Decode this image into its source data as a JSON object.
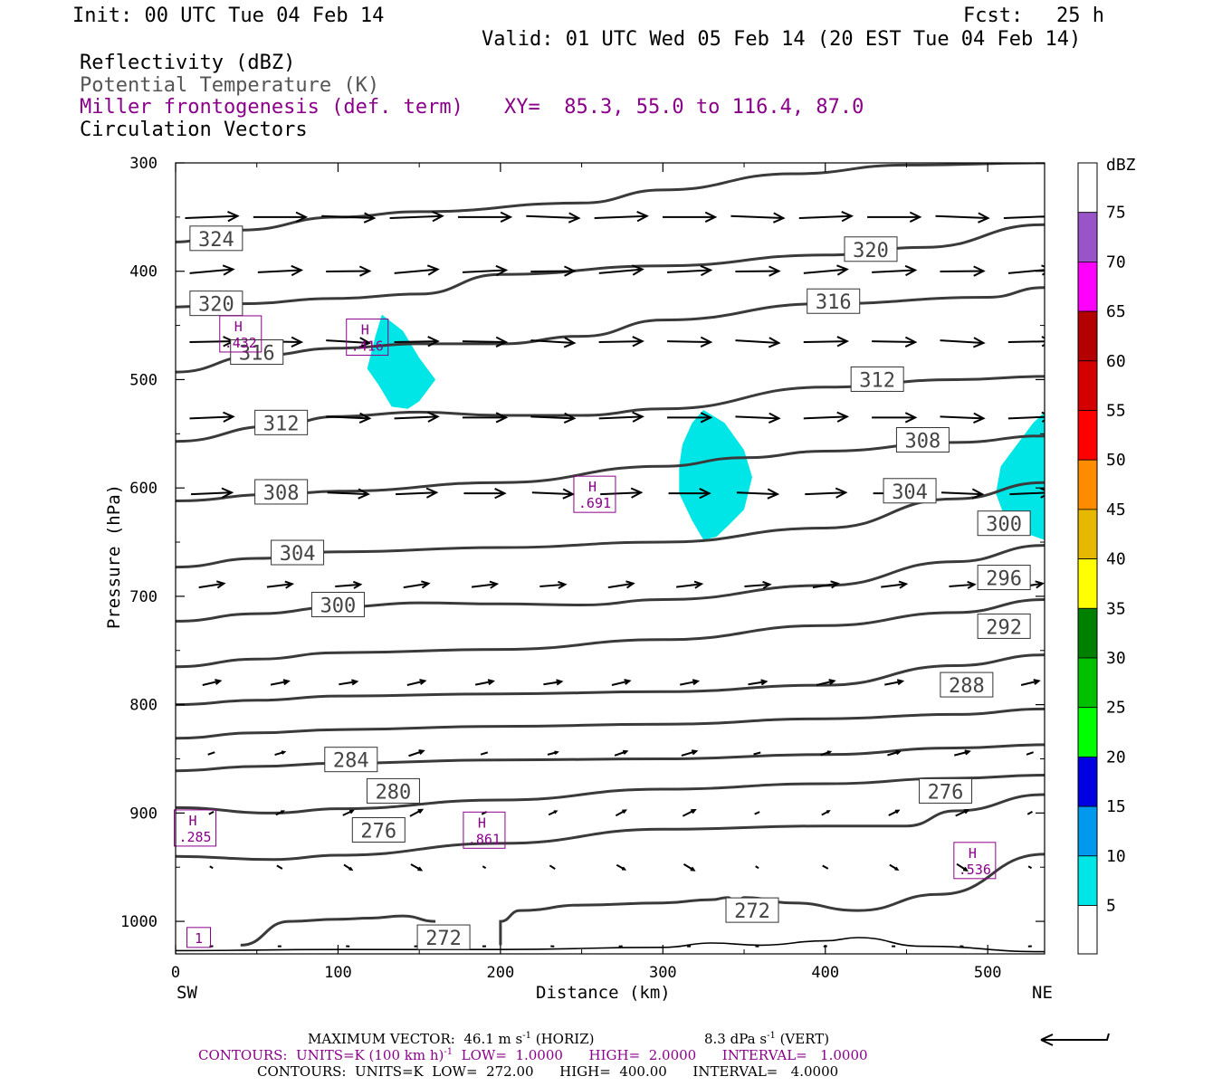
{
  "header": {
    "init": "Init: 00 UTC Tue 04 Feb 14",
    "fcst_label": "Fcst:",
    "fcst_value": "25 h",
    "valid": "Valid: 01 UTC Wed 05 Feb 14 (20 EST Tue 04 Feb 14)"
  },
  "fields": {
    "reflectivity": "Reflectivity (dBZ)",
    "theta": "Potential Temperature (K)",
    "miller": "Miller frontogenesis (def. term)",
    "xy": "XY=  85.3, 55.0 to 116.4, 87.0",
    "circulation": "Circulation Vectors"
  },
  "axes": {
    "ylabel": "Pressure (hPa)",
    "xlabel": "Distance (km)",
    "left_end": "SW",
    "right_end": "NE",
    "yticks": [
      "300",
      "400",
      "500",
      "600",
      "700",
      "800",
      "900",
      "1000"
    ],
    "xticks": [
      "0",
      "100",
      "200",
      "300",
      "400",
      "500"
    ]
  },
  "colorbar": {
    "title": "dBZ",
    "labels": [
      "75",
      "70",
      "65",
      "60",
      "55",
      "50",
      "45",
      "40",
      "35",
      "30",
      "25",
      "20",
      "15",
      "10",
      "5"
    ],
    "colors": [
      "#ffffff",
      "#9955c8",
      "#ff00ff",
      "#b30000",
      "#d40000",
      "#ff0000",
      "#ff8c00",
      "#e6b800",
      "#ffff00",
      "#008000",
      "#00c000",
      "#00ff00",
      "#0000e0",
      "#0099ee",
      "#00e6e6",
      "#ffffff"
    ]
  },
  "footer": {
    "vector_prefix": "MAXIMUM VECTOR:  46.1 m s",
    "vector_horiz_exp": "-1",
    "vector_horiz_suffix": " (HORIZ)",
    "vector_vert": "8.3 dPa s",
    "vector_vert_exp": "-1",
    "vector_vert_suffix": " (VERT)",
    "contours_purple_a": "CONTOURS:  UNITS=K (100 km h)",
    "contours_purple_exp": "-1",
    "contours_purple_b": "  LOW=  1.0000      HIGH=  2.0000      INTERVAL=   1.0000",
    "contours_black": "CONTOURS:  UNITS=K  LOW=  272.00      HIGH=  400.00      INTERVAL=   4.0000"
  },
  "chart_data": {
    "type": "cross-section",
    "x_range_km": [
      0,
      535
    ],
    "y_range_hpa": [
      300,
      1030
    ],
    "theta_contours_K": [
      {
        "label": "324",
        "pts": [
          [
            0,
            373
          ],
          [
            40,
            362
          ],
          [
            100,
            350
          ],
          [
            150,
            345
          ],
          [
            250,
            337
          ],
          [
            300,
            325
          ],
          [
            380,
            310
          ],
          [
            450,
            302
          ],
          [
            535,
            300
          ]
        ]
      },
      {
        "label": "320",
        "pts": [
          [
            0,
            433
          ],
          [
            40,
            430
          ],
          [
            100,
            425
          ],
          [
            150,
            421
          ],
          [
            200,
            403
          ],
          [
            300,
            395
          ],
          [
            400,
            385
          ],
          [
            460,
            378
          ],
          [
            535,
            357
          ]
        ]
      },
      {
        "label": "316",
        "pts": [
          [
            0,
            493
          ],
          [
            50,
            478
          ],
          [
            100,
            471
          ],
          [
            150,
            467
          ],
          [
            200,
            467
          ],
          [
            250,
            460
          ],
          [
            300,
            445
          ],
          [
            400,
            430
          ],
          [
            500,
            424
          ],
          [
            535,
            415
          ]
        ]
      },
      {
        "label": "312",
        "pts": [
          [
            0,
            557
          ],
          [
            60,
            543
          ],
          [
            100,
            534
          ],
          [
            150,
            530
          ],
          [
            200,
            533
          ],
          [
            250,
            533
          ],
          [
            300,
            527
          ],
          [
            400,
            507
          ],
          [
            480,
            500
          ],
          [
            535,
            497
          ]
        ]
      },
      {
        "label": "308",
        "pts": [
          [
            0,
            612
          ],
          [
            60,
            606
          ],
          [
            100,
            603
          ],
          [
            200,
            595
          ],
          [
            300,
            580
          ],
          [
            350,
            572
          ],
          [
            400,
            566
          ],
          [
            480,
            558
          ],
          [
            535,
            552
          ]
        ]
      },
      {
        "label": "304",
        "pts": [
          [
            0,
            673
          ],
          [
            50,
            665
          ],
          [
            100,
            659
          ],
          [
            200,
            655
          ],
          [
            300,
            650
          ],
          [
            400,
            637
          ],
          [
            480,
            610
          ],
          [
            535,
            595
          ]
        ]
      },
      {
        "label": "300",
        "pts": [
          [
            0,
            723
          ],
          [
            50,
            716
          ],
          [
            100,
            710
          ],
          [
            150,
            706
          ],
          [
            200,
            707
          ],
          [
            250,
            708
          ],
          [
            300,
            703
          ],
          [
            400,
            690
          ],
          [
            480,
            668
          ],
          [
            535,
            653
          ]
        ]
      },
      {
        "label": "296",
        "pts": [
          [
            0,
            765
          ],
          [
            50,
            758
          ],
          [
            100,
            752
          ],
          [
            200,
            749
          ],
          [
            300,
            740
          ],
          [
            400,
            727
          ],
          [
            480,
            715
          ],
          [
            535,
            703
          ]
        ]
      },
      {
        "label": "292",
        "pts": [
          [
            0,
            800
          ],
          [
            50,
            796
          ],
          [
            100,
            792
          ],
          [
            200,
            790
          ],
          [
            300,
            788
          ],
          [
            400,
            782
          ],
          [
            480,
            764
          ],
          [
            535,
            754
          ]
        ]
      },
      {
        "label": "288",
        "pts": [
          [
            0,
            831
          ],
          [
            50,
            826
          ],
          [
            100,
            823
          ],
          [
            200,
            820
          ],
          [
            300,
            818
          ],
          [
            400,
            813
          ],
          [
            480,
            809
          ],
          [
            535,
            804
          ]
        ]
      },
      {
        "label": "284",
        "pts": [
          [
            0,
            861
          ],
          [
            50,
            857
          ],
          [
            100,
            854
          ],
          [
            200,
            851
          ],
          [
            300,
            850
          ],
          [
            400,
            846
          ],
          [
            480,
            840
          ],
          [
            535,
            837
          ]
        ]
      },
      {
        "label": "280",
        "pts": [
          [
            0,
            895
          ],
          [
            60,
            900
          ],
          [
            100,
            896
          ],
          [
            200,
            888
          ],
          [
            300,
            878
          ],
          [
            400,
            873
          ],
          [
            480,
            868
          ],
          [
            535,
            865
          ]
        ]
      },
      {
        "label": "276",
        "pts": [
          [
            0,
            940
          ],
          [
            60,
            943
          ],
          [
            100,
            939
          ],
          [
            200,
            928
          ],
          [
            300,
            915
          ],
          [
            400,
            912
          ],
          [
            450,
            912
          ],
          [
            480,
            898
          ],
          [
            535,
            883
          ]
        ]
      }
    ],
    "theta_272_segments": [
      [
        [
          40,
          1022
        ],
        [
          70,
          1000
        ],
        [
          100,
          998
        ],
        [
          120,
          997
        ],
        [
          140,
          995
        ],
        [
          160,
          1000
        ]
      ],
      [
        [
          200,
          1022
        ],
        [
          200,
          1000
        ],
        [
          212,
          990
        ],
        [
          250,
          985
        ],
        [
          300,
          983
        ],
        [
          330,
          980
        ],
        [
          340,
          978
        ],
        [
          345,
          983
        ],
        [
          350,
          978
        ],
        [
          380,
          983
        ],
        [
          420,
          990
        ],
        [
          470,
          975
        ],
        [
          535,
          938
        ]
      ]
    ],
    "surface_line": [
      [
        0,
        1027
      ],
      [
        100,
        1026
      ],
      [
        200,
        1026
      ],
      [
        300,
        1024
      ],
      [
        330,
        1020
      ],
      [
        360,
        1022
      ],
      [
        400,
        1018
      ],
      [
        420,
        1015
      ],
      [
        460,
        1023
      ],
      [
        535,
        1028
      ]
    ],
    "frontogenesis_maxima": [
      {
        "label": "H",
        "value": ".432",
        "x": 40,
        "y": 462
      },
      {
        "label": "H",
        "value": ".416",
        "x": 118,
        "y": 465
      },
      {
        "label": "H",
        "value": ".691",
        "x": 258,
        "y": 610
      },
      {
        "label": "H",
        "value": ".285",
        "x": 12,
        "y": 918
      },
      {
        "label": "H",
        "value": ".861",
        "x": 190,
        "y": 920
      },
      {
        "label": "H",
        "value": ".536",
        "x": 492,
        "y": 948
      },
      {
        "label": "",
        "value": "1",
        "x": 17,
        "y": 1014
      }
    ],
    "reflectivity_5dBZ_regions": [
      [
        [
          127,
          440
        ],
        [
          140,
          455
        ],
        [
          150,
          480
        ],
        [
          160,
          500
        ],
        [
          150,
          520
        ],
        [
          143,
          527
        ],
        [
          133,
          525
        ],
        [
          125,
          505
        ],
        [
          118,
          490
        ],
        [
          123,
          460
        ]
      ],
      [
        [
          325,
          528
        ],
        [
          338,
          540
        ],
        [
          350,
          565
        ],
        [
          355,
          590
        ],
        [
          350,
          620
        ],
        [
          340,
          635
        ],
        [
          333,
          645
        ],
        [
          325,
          648
        ],
        [
          318,
          630
        ],
        [
          310,
          605
        ],
        [
          310,
          580
        ],
        [
          312,
          560
        ],
        [
          318,
          540
        ]
      ],
      [
        [
          535,
          530
        ],
        [
          528,
          540
        ],
        [
          518,
          560
        ],
        [
          508,
          580
        ],
        [
          505,
          605
        ],
        [
          510,
          625
        ],
        [
          520,
          640
        ],
        [
          535,
          648
        ]
      ]
    ],
    "vector_rows": [
      {
        "p": 350,
        "dirs": [
          [
            1,
            0
          ]
        ]
      },
      {
        "p": 400,
        "dirs": [
          [
            1,
            -0.05
          ]
        ]
      },
      {
        "p": 465,
        "dirs": [
          [
            1,
            0.02
          ]
        ]
      },
      {
        "p": 535,
        "dirs": [
          [
            1,
            0.0
          ]
        ]
      },
      {
        "p": 605,
        "dirs": [
          [
            1,
            0.0
          ]
        ]
      },
      {
        "p": 690,
        "dirs": [
          [
            1,
            -0.12
          ]
        ]
      },
      {
        "p": 780,
        "dirs": [
          [
            1,
            -0.2
          ]
        ]
      },
      {
        "p": 845,
        "dirs": [
          [
            1,
            -0.3
          ]
        ]
      },
      {
        "p": 900,
        "dirs": [
          [
            1,
            -0.5
          ]
        ]
      },
      {
        "p": 950,
        "dirs": [
          [
            1,
            0.6
          ]
        ]
      },
      {
        "p": 1023,
        "dirs": [
          [
            1,
            0.0
          ]
        ]
      }
    ],
    "max_vector_horiz": "46.1 m s-1",
    "max_vector_vert": "8.3 dPa s-1"
  }
}
